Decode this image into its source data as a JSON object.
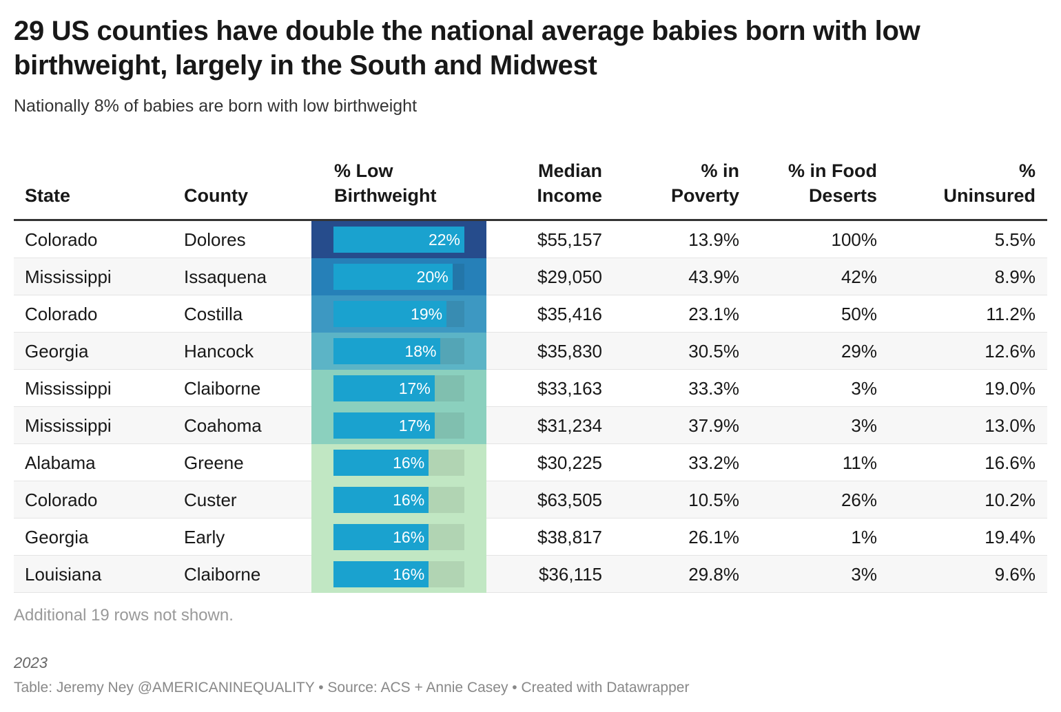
{
  "title": "29 US counties have double the national average babies born with low birthweight, largely in the South and Midwest",
  "subtitle": "Nationally 8% of babies are born with low birthweight",
  "chart_data": {
    "type": "table",
    "columns": [
      "State",
      "County",
      "% Low Birthweight",
      "Median Income",
      "% in Poverty",
      "% in Food Deserts",
      "% Uninsured"
    ],
    "bar_column_domain": [
      0,
      22
    ],
    "rows": [
      {
        "state": "Colorado",
        "county": "Dolores",
        "lbw": 22,
        "lbw_label": "22%",
        "income": "$55,157",
        "poverty": "13.9%",
        "food": "100%",
        "uninsured": "5.5%",
        "color": "#264c8c"
      },
      {
        "state": "Mississippi",
        "county": "Issaquena",
        "lbw": 20,
        "lbw_label": "20%",
        "income": "$29,050",
        "poverty": "43.9%",
        "food": "42%",
        "uninsured": "8.9%",
        "color": "#2680b8"
      },
      {
        "state": "Colorado",
        "county": "Costilla",
        "lbw": 19,
        "lbw_label": "19%",
        "income": "$35,416",
        "poverty": "23.1%",
        "food": "50%",
        "uninsured": "11.2%",
        "color": "#3d98c2"
      },
      {
        "state": "Georgia",
        "county": "Hancock",
        "lbw": 18,
        "lbw_label": "18%",
        "income": "$35,830",
        "poverty": "30.5%",
        "food": "29%",
        "uninsured": "12.6%",
        "color": "#5cb4c6"
      },
      {
        "state": "Mississippi",
        "county": "Claiborne",
        "lbw": 17,
        "lbw_label": "17%",
        "income": "$33,163",
        "poverty": "33.3%",
        "food": "3%",
        "uninsured": "19.0%",
        "color": "#8bd0be"
      },
      {
        "state": "Mississippi",
        "county": "Coahoma",
        "lbw": 17,
        "lbw_label": "17%",
        "income": "$31,234",
        "poverty": "37.9%",
        "food": "3%",
        "uninsured": "13.0%",
        "color": "#8bd0be"
      },
      {
        "state": "Alabama",
        "county": "Greene",
        "lbw": 16,
        "lbw_label": "16%",
        "income": "$30,225",
        "poverty": "33.2%",
        "food": "11%",
        "uninsured": "16.6%",
        "color": "#c1e7c3"
      },
      {
        "state": "Colorado",
        "county": "Custer",
        "lbw": 16,
        "lbw_label": "16%",
        "income": "$63,505",
        "poverty": "10.5%",
        "food": "26%",
        "uninsured": "10.2%",
        "color": "#c1e7c3"
      },
      {
        "state": "Georgia",
        "county": "Early",
        "lbw": 16,
        "lbw_label": "16%",
        "income": "$38,817",
        "poverty": "26.1%",
        "food": "1%",
        "uninsured": "19.4%",
        "color": "#c1e7c3"
      },
      {
        "state": "Louisiana",
        "county": "Claiborne",
        "lbw": 16,
        "lbw_label": "16%",
        "income": "$36,115",
        "poverty": "29.8%",
        "food": "3%",
        "uninsured": "9.6%",
        "color": "#c1e7c3"
      }
    ]
  },
  "headers": {
    "state": "State",
    "county": "County",
    "lbw_1": "% Low",
    "lbw_2": "Birthweight",
    "income_1": "Median",
    "income_2": "Income",
    "poverty_1": "% in",
    "poverty_2": "Poverty",
    "food_1": "% in Food",
    "food_2": "Deserts",
    "unins_1": "%",
    "unins_2": "Uninsured"
  },
  "notes": "Additional 19 rows not shown.",
  "year": "2023",
  "credit": "Table: Jeremy Ney @AMERICANINEQUALITY • Source: ACS + Annie Casey • Created with Datawrapper",
  "bar_color": "#1aa2cf"
}
